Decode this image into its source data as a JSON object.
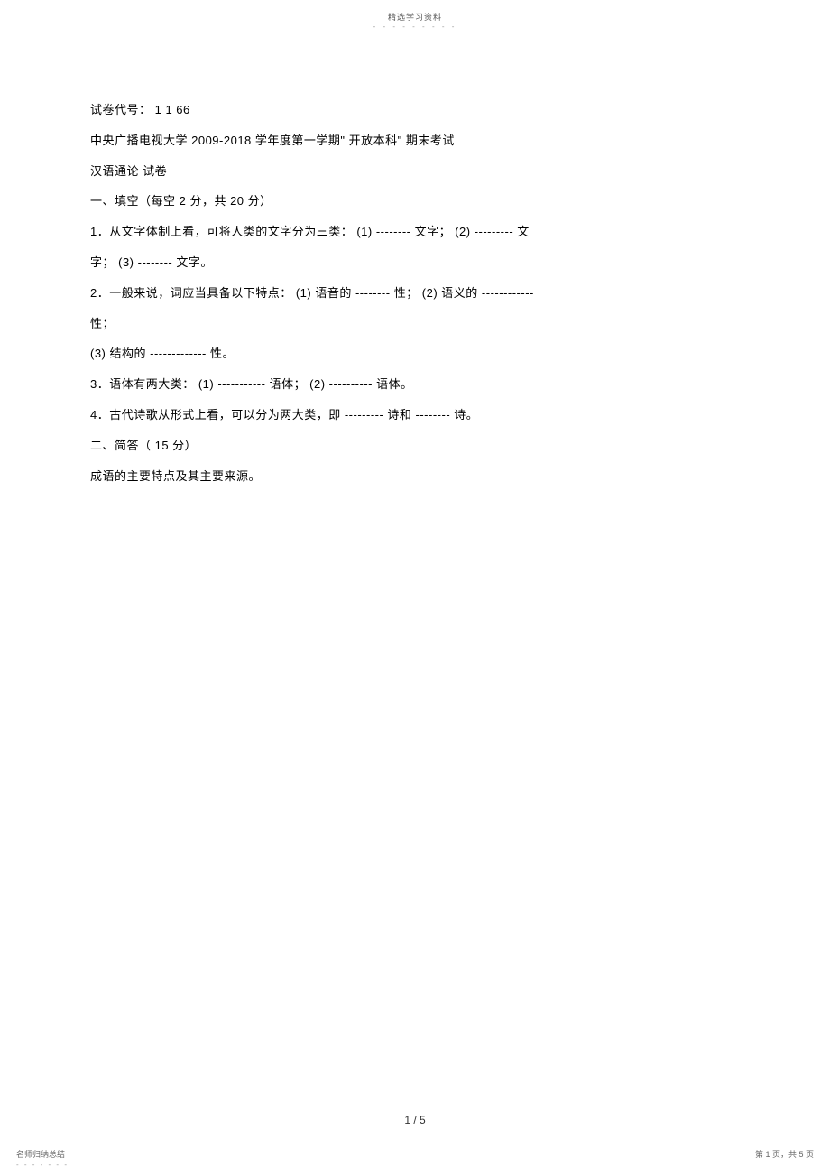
{
  "header": {
    "label": "精选学习资料",
    "dashes": "- - - - - - - - -"
  },
  "content": {
    "lines": [
      "试卷代号：  1 1 66",
      "中央广播电视大学    2009-2018  学年度第一学期\"  开放本科\"  期末考试",
      "汉语通论    试卷",
      "一、填空（每空   2 分，共  20 分）",
      "1．从文字体制上看，可将人类的文字分为三类：       (1) --------         文字； (2) ---------        文",
      "字； (3) --------        文字。",
      "2．一般来说，词应当具备以下特点：       (1)  语音的 --------      性； (2)  语义的  ------------",
      "性；",
      "(3)  结构的   -------------              性。",
      "3．语体有两大类：   (1) -----------          语体； (2) ----------         语体。",
      "4．古代诗歌从形式上看，可以分为两大类，即      ---------        诗和 --------      诗。",
      "二、简答（  15 分）",
      "成语的主要特点及其主要来源。"
    ]
  },
  "pageNumber": "1 / 5",
  "footer": {
    "left": "名师归纳总结",
    "leftDash": "- - - - - - -",
    "right": "第 1 页，共 5 页"
  },
  "style": {
    "pageWidth": 920,
    "pageHeight": 1303,
    "backgroundColor": "#ffffff",
    "textColor": "#000000",
    "headerColor": "#555555",
    "footerColor": "#666666",
    "fontSize": 13,
    "headerFontSize": 9,
    "footerFontSize": 9,
    "lineHeight": 2.6
  }
}
